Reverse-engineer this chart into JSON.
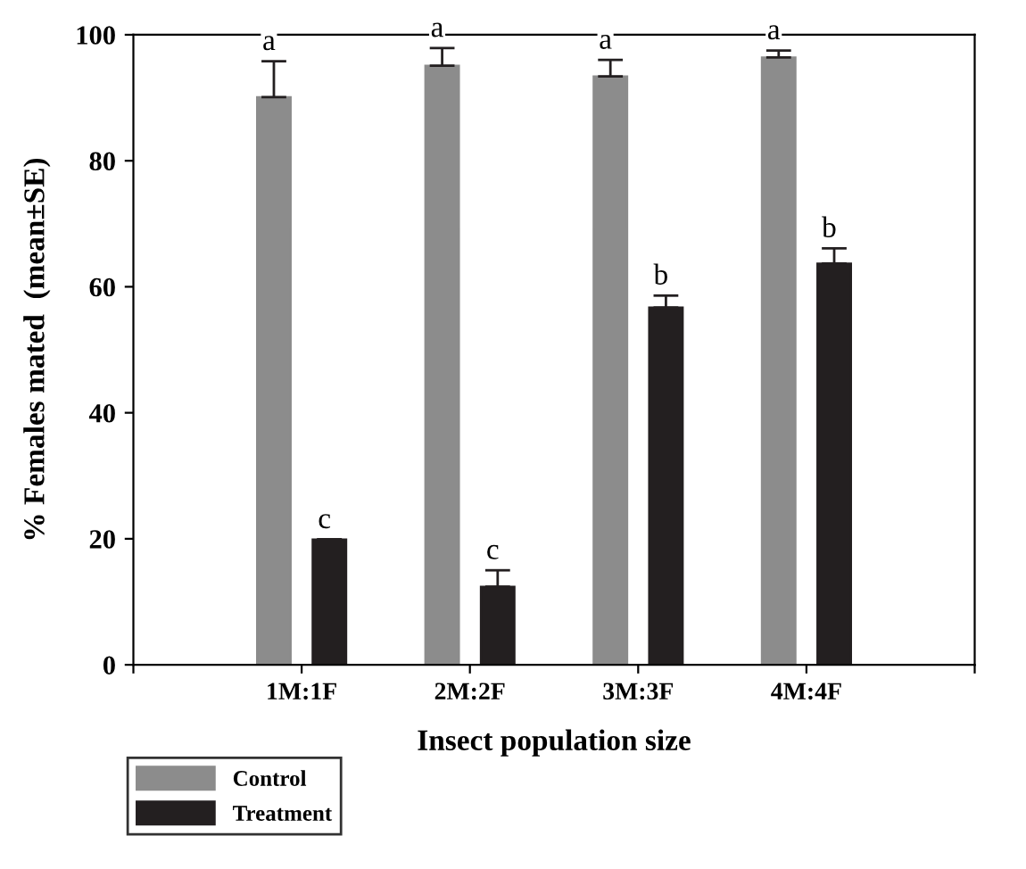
{
  "chart_data": {
    "type": "bar",
    "xlabel": "Insect population size",
    "ylabel": "% Females mated  (mean±SE)",
    "categories": [
      null,
      "1M:1F",
      "2M:2F",
      "3M:3F",
      "4M:4F",
      null
    ],
    "series": [
      {
        "name": "Control",
        "color": "#8c8c8c",
        "values": [
          null,
          90.1,
          95.1,
          93.4,
          96.4,
          null
        ],
        "errors": [
          null,
          5.7,
          2.8,
          2.6,
          1.1,
          null
        ]
      },
      {
        "name": "Treatment",
        "color": "#231f20",
        "values": [
          null,
          19.9,
          12.4,
          56.7,
          63.7,
          null
        ],
        "errors": [
          null,
          0,
          2.6,
          1.9,
          2.4,
          null
        ]
      }
    ],
    "ylim": [
      0,
      100
    ],
    "yticks": [
      0,
      20,
      40,
      60,
      80,
      100
    ],
    "grid": false,
    "legend": "bottom left",
    "annotations": [
      "a",
      "c",
      "a",
      "c",
      "a",
      "b",
      "a",
      "b"
    ]
  }
}
